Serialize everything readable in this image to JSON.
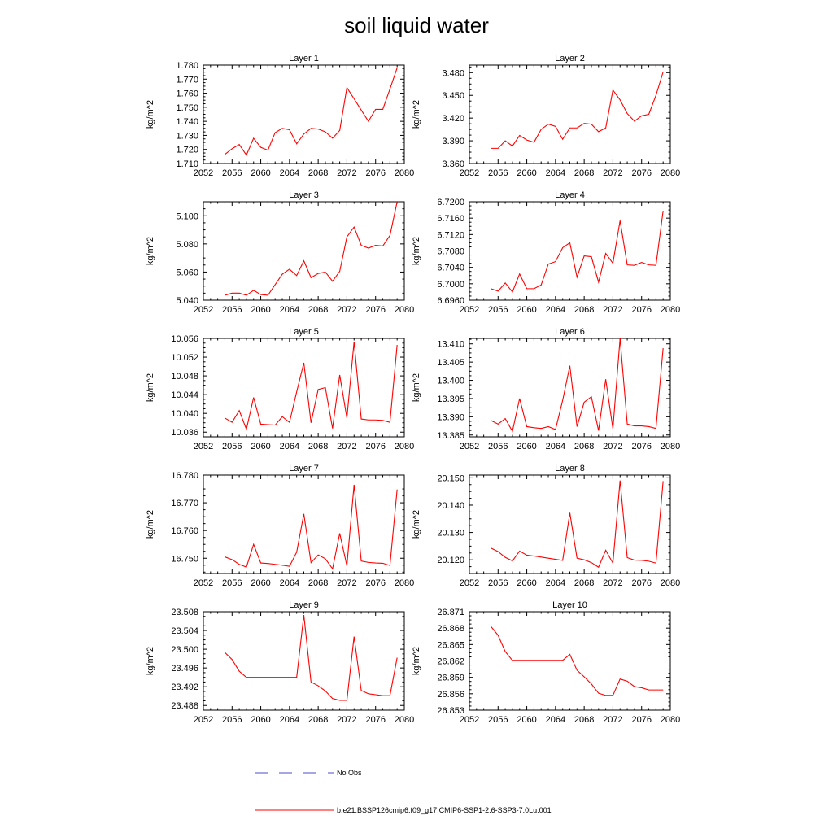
{
  "figure": {
    "title": "soil liquid water"
  },
  "legend": {
    "obs_label": "No Obs",
    "model_label": "b.e21.BSSP126cmip6.f09_g17.CMIP6-SSP1-2.6-SSP3-7.0Lu.001",
    "model_color": "#ff0000",
    "obs_color": "#4d4dcc"
  },
  "chart_data": [
    {
      "type": "line",
      "title": "Layer 1",
      "ylabel": "kg/m^2",
      "xlim": [
        2052,
        2080
      ],
      "ylim": [
        1.71,
        1.78
      ],
      "xticks": [
        "2052",
        "2056",
        "2060",
        "2064",
        "2068",
        "2072",
        "2076",
        "2080"
      ],
      "yticks": [
        "1.710",
        "1.720",
        "1.730",
        "1.740",
        "1.750",
        "1.760",
        "1.770",
        "1.780"
      ],
      "series": [
        {
          "x": [
            2055,
            2056,
            2057,
            2058,
            2059,
            2060,
            2061,
            2062,
            2063,
            2064,
            2065,
            2066,
            2067,
            2068,
            2069,
            2070,
            2071,
            2072,
            2073,
            2074,
            2075,
            2076,
            2077,
            2078,
            2079
          ],
          "y": [
            1.7165,
            1.7205,
            1.7235,
            1.716,
            1.728,
            1.7215,
            1.7195,
            1.732,
            1.735,
            1.734,
            1.724,
            1.731,
            1.735,
            1.7345,
            1.7325,
            1.728,
            1.7335,
            1.764,
            1.756,
            1.748,
            1.74,
            1.7485,
            1.7485,
            1.763,
            1.778
          ]
        }
      ]
    },
    {
      "type": "line",
      "title": "Layer 2",
      "ylabel": "kg/m^2",
      "xlim": [
        2052,
        2080
      ],
      "ylim": [
        3.36,
        3.49
      ],
      "xticks": [
        "2052",
        "2056",
        "2060",
        "2064",
        "2068",
        "2072",
        "2076",
        "2080"
      ],
      "yticks": [
        "3.360",
        "3.390",
        "3.420",
        "3.450",
        "3.480"
      ],
      "series": [
        {
          "x": [
            2055,
            2056,
            2057,
            2058,
            2059,
            2060,
            2061,
            2062,
            2063,
            2064,
            2065,
            2066,
            2067,
            2068,
            2069,
            2070,
            2071,
            2072,
            2073,
            2074,
            2075,
            2076,
            2077,
            2078,
            2079
          ],
          "y": [
            3.38,
            3.38,
            3.39,
            3.383,
            3.397,
            3.391,
            3.388,
            3.405,
            3.412,
            3.409,
            3.392,
            3.407,
            3.407,
            3.413,
            3.412,
            3.402,
            3.407,
            3.457,
            3.444,
            3.426,
            3.416,
            3.423,
            3.425,
            3.45,
            3.481
          ]
        }
      ]
    },
    {
      "type": "line",
      "title": "Layer 3",
      "ylabel": "kg/m^2",
      "xlim": [
        2052,
        2080
      ],
      "ylim": [
        5.04,
        5.11
      ],
      "xticks": [
        "2052",
        "2056",
        "2060",
        "2064",
        "2068",
        "2072",
        "2076",
        "2080"
      ],
      "yticks": [
        "5.040",
        "5.060",
        "5.080",
        "5.100"
      ],
      "series": [
        {
          "x": [
            2055,
            2056,
            2057,
            2058,
            2059,
            2060,
            2061,
            2062,
            2063,
            2064,
            2065,
            2066,
            2067,
            2068,
            2069,
            2070,
            2071,
            2072,
            2073,
            2074,
            2075,
            2076,
            2077,
            2078,
            2079
          ],
          "y": [
            5.0435,
            5.045,
            5.045,
            5.0435,
            5.047,
            5.044,
            5.0435,
            5.051,
            5.0585,
            5.062,
            5.0575,
            5.068,
            5.056,
            5.059,
            5.06,
            5.0535,
            5.0605,
            5.085,
            5.092,
            5.079,
            5.077,
            5.079,
            5.0785,
            5.086,
            5.11
          ]
        }
      ]
    },
    {
      "type": "line",
      "title": "Layer 4",
      "ylabel": "kg/m^2",
      "xlim": [
        2052,
        2080
      ],
      "ylim": [
        6.696,
        6.72
      ],
      "xticks": [
        "2052",
        "2056",
        "2060",
        "2064",
        "2068",
        "2072",
        "2076",
        "2080"
      ],
      "yticks": [
        "6.6960",
        "6.7000",
        "6.7040",
        "6.7080",
        "6.7120",
        "6.7160",
        "6.7200"
      ],
      "series": [
        {
          "x": [
            2055,
            2056,
            2057,
            2058,
            2059,
            2060,
            2061,
            2062,
            2063,
            2064,
            2065,
            2066,
            2067,
            2068,
            2069,
            2070,
            2071,
            2072,
            2073,
            2074,
            2075,
            2076,
            2077,
            2078,
            2079
          ],
          "y": [
            6.6988,
            6.6982,
            6.7002,
            6.698,
            6.7024,
            6.6988,
            6.6988,
            6.6997,
            6.7048,
            6.7054,
            6.7088,
            6.71,
            6.7016,
            6.7068,
            6.7066,
            6.7004,
            6.7074,
            6.705,
            6.7154,
            6.7046,
            6.7045,
            6.7052,
            6.7046,
            6.7045,
            6.7178
          ]
        }
      ]
    },
    {
      "type": "line",
      "title": "Layer 5",
      "ylabel": "kg/m^2",
      "xlim": [
        2052,
        2080
      ],
      "ylim": [
        10.035,
        10.056
      ],
      "xticks": [
        "2052",
        "2056",
        "2060",
        "2064",
        "2068",
        "2072",
        "2076",
        "2080"
      ],
      "yticks": [
        "10.036",
        "10.040",
        "10.044",
        "10.048",
        "10.052",
        "10.056"
      ],
      "series": [
        {
          "x": [
            2055,
            2056,
            2057,
            2058,
            2059,
            2060,
            2061,
            2062,
            2063,
            2064,
            2065,
            2066,
            2067,
            2068,
            2069,
            2070,
            2071,
            2072,
            2073,
            2074,
            2075,
            2076,
            2077,
            2078,
            2079
          ],
          "y": [
            10.039,
            10.0381,
            10.0406,
            10.0366,
            10.0434,
            10.0377,
            10.0376,
            10.0375,
            10.0393,
            10.0381,
            10.0446,
            10.0508,
            10.038,
            10.0451,
            10.0455,
            10.0368,
            10.0482,
            10.039,
            10.0553,
            10.0388,
            10.0386,
            10.0386,
            10.0385,
            10.0381,
            10.0546
          ]
        }
      ]
    },
    {
      "type": "line",
      "title": "Layer 6",
      "ylabel": "kg/m^2",
      "xlim": [
        2052,
        2080
      ],
      "ylim": [
        13.3845,
        13.4115
      ],
      "xticks": [
        "2052",
        "2056",
        "2060",
        "2064",
        "2068",
        "2072",
        "2076",
        "2080"
      ],
      "yticks": [
        "13.385",
        "13.390",
        "13.395",
        "13.400",
        "13.405",
        "13.410"
      ],
      "series": [
        {
          "x": [
            2055,
            2056,
            2057,
            2058,
            2059,
            2060,
            2061,
            2062,
            2063,
            2064,
            2065,
            2066,
            2067,
            2068,
            2069,
            2070,
            2071,
            2072,
            2073,
            2074,
            2075,
            2076,
            2077,
            2078,
            2079
          ],
          "y": [
            13.389,
            13.388,
            13.3895,
            13.386,
            13.395,
            13.3873,
            13.387,
            13.3868,
            13.3873,
            13.3865,
            13.3945,
            13.404,
            13.3873,
            13.394,
            13.3955,
            13.3862,
            13.4003,
            13.3867,
            13.4115,
            13.388,
            13.3875,
            13.3875,
            13.3873,
            13.3868,
            13.4088
          ]
        }
      ]
    },
    {
      "type": "line",
      "title": "Layer 7",
      "ylabel": "kg/m^2",
      "xlim": [
        2052,
        2080
      ],
      "ylim": [
        16.7445,
        16.78
      ],
      "xticks": [
        "2052",
        "2056",
        "2060",
        "2064",
        "2068",
        "2072",
        "2076",
        "2080"
      ],
      "yticks": [
        "16.750",
        "16.760",
        "16.770",
        "16.780"
      ],
      "series": [
        {
          "x": [
            2055,
            2056,
            2057,
            2058,
            2059,
            2060,
            2061,
            2062,
            2063,
            2064,
            2065,
            2066,
            2067,
            2068,
            2069,
            2070,
            2071,
            2072,
            2073,
            2074,
            2075,
            2076,
            2077,
            2078,
            2079
          ],
          "y": [
            16.7505,
            16.7495,
            16.7478,
            16.7468,
            16.755,
            16.7483,
            16.7481,
            16.7478,
            16.7475,
            16.7471,
            16.7522,
            16.766,
            16.7484,
            16.7512,
            16.7498,
            16.7462,
            16.759,
            16.7473,
            16.7765,
            16.749,
            16.7485,
            16.7483,
            16.7482,
            16.7474,
            16.7748
          ]
        }
      ]
    },
    {
      "type": "line",
      "title": "Layer 8",
      "ylabel": "kg/m^2",
      "xlim": [
        2052,
        2080
      ],
      "ylim": [
        20.115,
        20.151
      ],
      "xticks": [
        "2052",
        "2056",
        "2060",
        "2064",
        "2068",
        "2072",
        "2076",
        "2080"
      ],
      "yticks": [
        "20.120",
        "20.130",
        "20.140",
        "20.150"
      ],
      "series": [
        {
          "x": [
            2055,
            2056,
            2057,
            2058,
            2059,
            2060,
            2061,
            2062,
            2063,
            2064,
            2065,
            2066,
            2067,
            2068,
            2069,
            2070,
            2071,
            2072,
            2073,
            2074,
            2075,
            2076,
            2077,
            2078,
            2079
          ],
          "y": [
            20.1243,
            20.123,
            20.1209,
            20.1196,
            20.1232,
            20.1217,
            20.1214,
            20.121,
            20.1206,
            20.1202,
            20.1198,
            20.1372,
            20.1206,
            20.12,
            20.119,
            20.1173,
            20.1235,
            20.1188,
            20.149,
            20.1208,
            20.1199,
            20.1198,
            20.1195,
            20.1188,
            20.1488
          ]
        }
      ]
    },
    {
      "type": "line",
      "title": "Layer 9",
      "ylabel": "kg/m^2",
      "xlim": [
        2052,
        2080
      ],
      "ylim": [
        23.487,
        23.508
      ],
      "xticks": [
        "2052",
        "2056",
        "2060",
        "2064",
        "2068",
        "2072",
        "2076",
        "2080"
      ],
      "yticks": [
        "23.488",
        "23.492",
        "23.496",
        "23.500",
        "23.504",
        "23.508"
      ],
      "series": [
        {
          "x": [
            2055,
            2056,
            2057,
            2058,
            2059,
            2060,
            2061,
            2062,
            2063,
            2064,
            2065,
            2066,
            2067,
            2068,
            2069,
            2070,
            2071,
            2072,
            2073,
            2074,
            2075,
            2076,
            2077,
            2078,
            2079
          ],
          "y": [
            23.4993,
            23.4978,
            23.4953,
            23.494,
            23.494,
            23.494,
            23.494,
            23.494,
            23.494,
            23.494,
            23.494,
            23.5073,
            23.493,
            23.4922,
            23.4911,
            23.4895,
            23.4891,
            23.4891,
            23.5027,
            23.4912,
            23.4905,
            23.4903,
            23.4901,
            23.4901,
            23.4982
          ]
        }
      ]
    },
    {
      "type": "line",
      "title": "Layer 10",
      "ylabel": "kg/m^2",
      "xlim": [
        2052,
        2080
      ],
      "ylim": [
        26.853,
        26.871
      ],
      "xticks": [
        "2052",
        "2056",
        "2060",
        "2064",
        "2068",
        "2072",
        "2076",
        "2080"
      ],
      "yticks": [
        "26.853",
        "26.856",
        "26.859",
        "26.862",
        "26.865",
        "26.868",
        "26.871"
      ],
      "series": [
        {
          "x": [
            2055,
            2056,
            2057,
            2058,
            2059,
            2060,
            2061,
            2062,
            2063,
            2064,
            2065,
            2066,
            2067,
            2068,
            2069,
            2070,
            2071,
            2072,
            2073,
            2074,
            2075,
            2076,
            2077,
            2078,
            2079
          ],
          "y": [
            26.8683,
            26.8667,
            26.8637,
            26.8621,
            26.8621,
            26.8621,
            26.8621,
            26.8621,
            26.8621,
            26.8621,
            26.8621,
            26.8632,
            26.8603,
            26.8591,
            26.8578,
            26.8561,
            26.8557,
            26.8557,
            26.8587,
            26.8583,
            26.8573,
            26.8571,
            26.8567,
            26.8567,
            26.8567
          ]
        }
      ]
    }
  ]
}
